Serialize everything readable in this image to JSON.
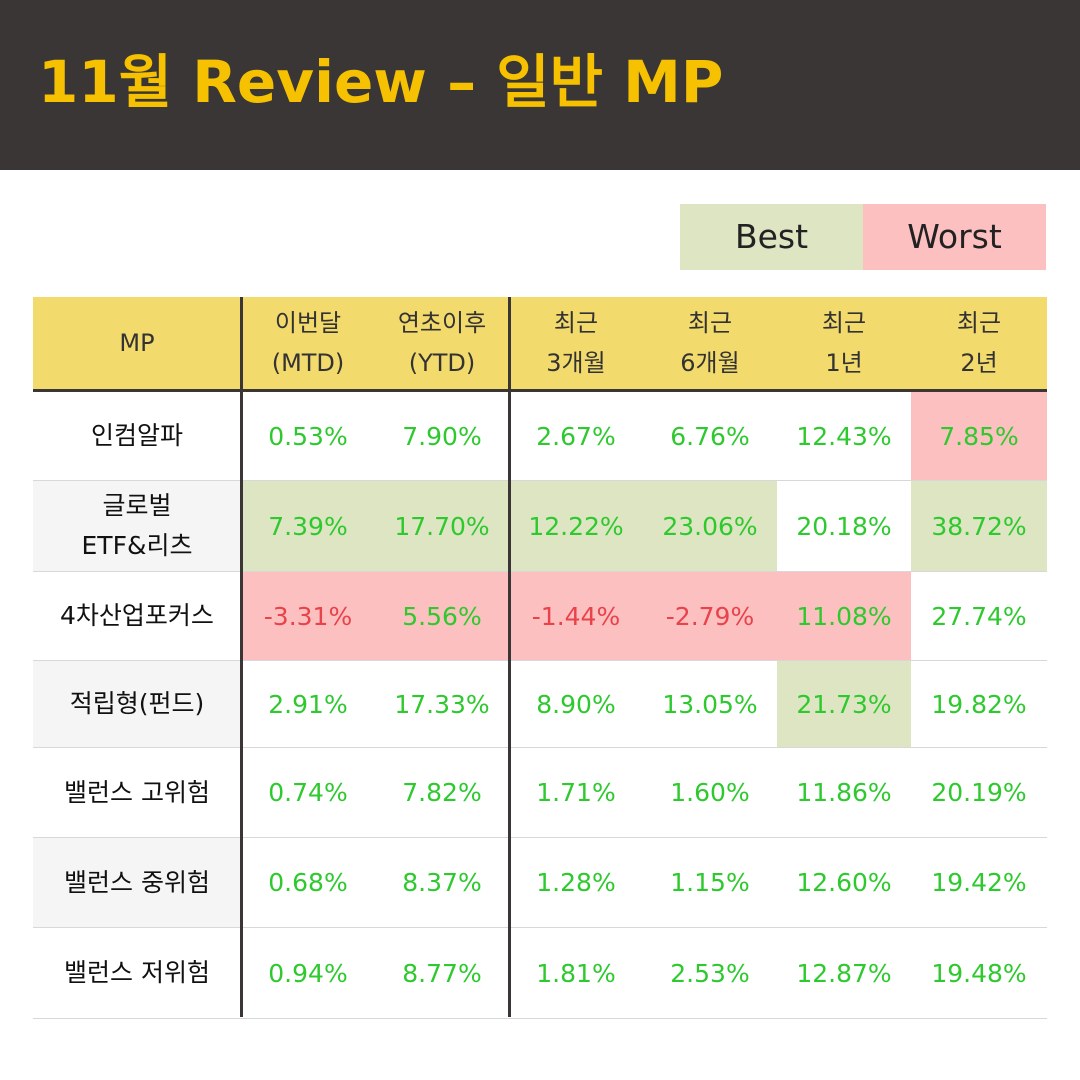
{
  "title": "11월 Review – 일반 MP",
  "legend": {
    "best": "Best",
    "worst": "Worst"
  },
  "colors": {
    "best_bg": "#dde5c2",
    "worst_bg": "#fdc0c0",
    "positive": "#2ec92e",
    "negative": "#e8424a",
    "header_bg": "#f3da6c",
    "banner": "#3a3635",
    "title": "#f5c100"
  },
  "chart_data": {
    "type": "table",
    "columns": [
      {
        "line1": "MP",
        "line2": ""
      },
      {
        "line1": "이번달",
        "line2": "(MTD)"
      },
      {
        "line1": "연초이후",
        "line2": "(YTD)"
      },
      {
        "line1": "최근",
        "line2": "3개월"
      },
      {
        "line1": "최근",
        "line2": "6개월"
      },
      {
        "line1": "최근",
        "line2": "1년"
      },
      {
        "line1": "최근",
        "line2": "2년"
      }
    ],
    "rows": [
      {
        "name": [
          "인컴알파"
        ],
        "values": [
          "0.53%",
          "7.90%",
          "2.67%",
          "6.76%",
          "12.43%",
          "7.85%"
        ],
        "highlight": [
          "",
          "",
          "",
          "",
          "",
          "worst"
        ]
      },
      {
        "name": [
          "글로벌",
          "ETF&리츠"
        ],
        "values": [
          "7.39%",
          "17.70%",
          "12.22%",
          "23.06%",
          "20.18%",
          "38.72%"
        ],
        "highlight": [
          "best",
          "best",
          "best",
          "best",
          "",
          "best"
        ]
      },
      {
        "name": [
          "4차산업포커스"
        ],
        "values": [
          "-3.31%",
          "5.56%",
          "-1.44%",
          "-2.79%",
          "11.08%",
          "27.74%"
        ],
        "highlight": [
          "worst",
          "worst",
          "worst",
          "worst",
          "worst",
          ""
        ]
      },
      {
        "name": [
          "적립형(펀드)"
        ],
        "values": [
          "2.91%",
          "17.33%",
          "8.90%",
          "13.05%",
          "21.73%",
          "19.82%"
        ],
        "highlight": [
          "",
          "",
          "",
          "",
          "best",
          ""
        ]
      },
      {
        "name": [
          "밸런스 고위험"
        ],
        "values": [
          "0.74%",
          "7.82%",
          "1.71%",
          "1.60%",
          "11.86%",
          "20.19%"
        ],
        "highlight": [
          "",
          "",
          "",
          "",
          "",
          ""
        ]
      },
      {
        "name": [
          "밸런스 중위험"
        ],
        "values": [
          "0.68%",
          "8.37%",
          "1.28%",
          "1.15%",
          "12.60%",
          "19.42%"
        ],
        "highlight": [
          "",
          "",
          "",
          "",
          "",
          ""
        ]
      },
      {
        "name": [
          "밸런스 저위험"
        ],
        "values": [
          "0.94%",
          "8.77%",
          "1.81%",
          "2.53%",
          "12.87%",
          "19.48%"
        ],
        "highlight": [
          "",
          "",
          "",
          "",
          "",
          ""
        ]
      }
    ]
  }
}
